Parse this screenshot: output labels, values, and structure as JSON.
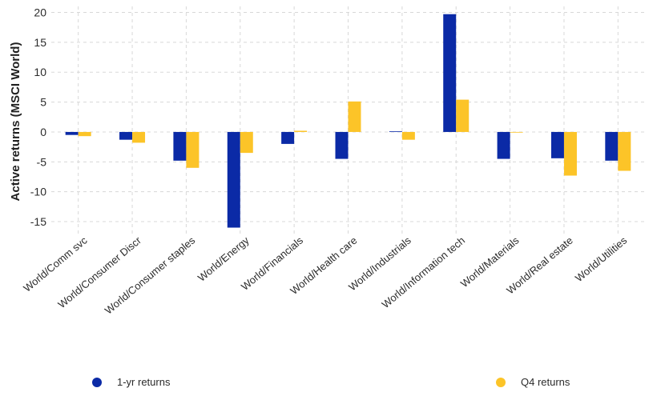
{
  "chart_data": {
    "type": "bar",
    "title": "",
    "xlabel": "",
    "ylabel": "Active returns (MSCI World)",
    "ylim": [
      -17,
      21
    ],
    "yticks": [
      20,
      15,
      10,
      5,
      0,
      -5,
      -10,
      -15
    ],
    "grid": true,
    "legend_position": "bottom",
    "categories": [
      "World/Comm svc",
      "World/Consumer Discr",
      "World/Consumer staples",
      "World/Energy",
      "World/Financials",
      "World/Health care",
      "World/Industrials",
      "World/Information tech",
      "World/Materials",
      "World/Real estate",
      "World/Utilities"
    ],
    "series": [
      {
        "name": "1-yr returns",
        "color": "#0b2aa6",
        "values": [
          -0.5,
          -1.3,
          -4.8,
          -16.0,
          -2.0,
          -4.5,
          0.1,
          19.7,
          -4.5,
          -4.4,
          -4.8
        ]
      },
      {
        "name": "Q4 returns",
        "color": "#fcc428",
        "values": [
          -0.7,
          -1.8,
          -6.0,
          -3.5,
          0.2,
          5.1,
          -1.3,
          5.4,
          0.0,
          -7.3,
          -6.5
        ]
      }
    ]
  }
}
